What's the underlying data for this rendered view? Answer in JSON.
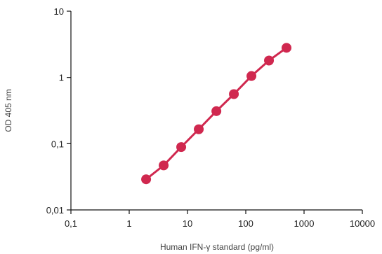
{
  "chart_data": {
    "type": "line",
    "title": "",
    "xlabel": "Human IFN-γ standard (pg/ml)",
    "ylabel": "OD 405 nm",
    "xscale": "log",
    "yscale": "log",
    "xlim": [
      0.1,
      10000
    ],
    "ylim": [
      0.01,
      10
    ],
    "x_ticks": [
      {
        "value": 0.1,
        "label": "0,1"
      },
      {
        "value": 1,
        "label": "1"
      },
      {
        "value": 10,
        "label": "10"
      },
      {
        "value": 100,
        "label": "100"
      },
      {
        "value": 1000,
        "label": "1000"
      },
      {
        "value": 10000,
        "label": "10000"
      }
    ],
    "y_ticks": [
      {
        "value": 0.01,
        "label": "0,01"
      },
      {
        "value": 0.1,
        "label": "0,1"
      },
      {
        "value": 1,
        "label": "1"
      },
      {
        "value": 10,
        "label": "10"
      }
    ],
    "grid": false,
    "legend": "none",
    "series": [
      {
        "color": "#d0284f",
        "marker": "circle",
        "x": [
          1.95,
          3.9,
          7.8,
          15.6,
          31.3,
          62.5,
          125,
          250,
          500
        ],
        "y": [
          0.029,
          0.047,
          0.089,
          0.165,
          0.31,
          0.56,
          1.05,
          1.8,
          2.8
        ]
      }
    ]
  }
}
